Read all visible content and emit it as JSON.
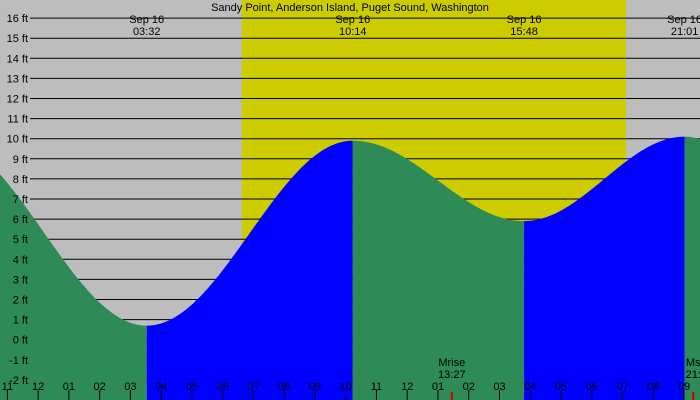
{
  "chart_data": {
    "type": "area",
    "title": "Sandy Point, Anderson Island, Puget Sound, Washington",
    "xlabel": "",
    "ylabel": "",
    "y_unit": "ft",
    "ylim": [
      -3.0,
      16.9
    ],
    "xlim_hours": [
      10.76,
      33.52
    ],
    "y_ticks": [
      {
        "value": 16,
        "label": "16 ft"
      },
      {
        "value": 15,
        "label": "15 ft"
      },
      {
        "value": 14,
        "label": "14 ft"
      },
      {
        "value": 13,
        "label": "13 ft"
      },
      {
        "value": 12,
        "label": "12 ft"
      },
      {
        "value": 11,
        "label": "11 ft"
      },
      {
        "value": 10,
        "label": "10 ft"
      },
      {
        "value": 9,
        "label": "9 ft"
      },
      {
        "value": 8,
        "label": "8 ft"
      },
      {
        "value": 7,
        "label": "7 ft"
      },
      {
        "value": 6,
        "label": "6 ft"
      },
      {
        "value": 5,
        "label": "5 ft"
      },
      {
        "value": 4,
        "label": "4 ft"
      },
      {
        "value": 3,
        "label": "3 ft"
      },
      {
        "value": 2,
        "label": "2 ft"
      },
      {
        "value": 1,
        "label": "1 ft"
      },
      {
        "value": 0,
        "label": "0 ft"
      },
      {
        "value": -1,
        "label": "-1 ft"
      },
      {
        "value": -2,
        "label": "-2 ft"
      }
    ],
    "x_ticks": [
      {
        "hour": 11,
        "label": "11"
      },
      {
        "hour": 12,
        "label": "12"
      },
      {
        "hour": 13,
        "label": "01"
      },
      {
        "hour": 14,
        "label": "02"
      },
      {
        "hour": 15,
        "label": "03"
      },
      {
        "hour": 16,
        "label": "04"
      },
      {
        "hour": 17,
        "label": "05"
      },
      {
        "hour": 18,
        "label": "06"
      },
      {
        "hour": 19,
        "label": "07"
      },
      {
        "hour": 20,
        "label": "08"
      },
      {
        "hour": 21,
        "label": "09"
      },
      {
        "hour": 22,
        "label": "10"
      },
      {
        "hour": 23,
        "label": "11"
      },
      {
        "hour": 24,
        "label": "12"
      },
      {
        "hour": 25,
        "label": "01"
      },
      {
        "hour": 26,
        "label": "02"
      },
      {
        "hour": 27,
        "label": "03"
      },
      {
        "hour": 28,
        "label": "04"
      },
      {
        "hour": 29,
        "label": "05"
      },
      {
        "hour": 30,
        "label": "06"
      },
      {
        "hour": 31,
        "label": "07"
      },
      {
        "hour": 32,
        "label": "08"
      },
      {
        "hour": 33,
        "label": "09"
      }
    ],
    "extremes": [
      {
        "date": "Sep 16",
        "time": "03:32",
        "hour": 15.53,
        "height_ft": 0.7,
        "kind": "low"
      },
      {
        "date": "Sep 16",
        "time": "10:14",
        "hour": 22.23,
        "height_ft": 9.9,
        "kind": "high"
      },
      {
        "date": "Sep 16",
        "time": "15:48",
        "hour": 27.8,
        "height_ft": 5.9,
        "kind": "low"
      },
      {
        "date": "Sep 16",
        "time": "21:01",
        "hour": 33.02,
        "height_ft": 10.1,
        "kind": "high"
      }
    ],
    "daylight": {
      "start_hour": 18.62,
      "end_hour": 31.12
    },
    "series": [
      {
        "kind": "falling",
        "from_hour": 10.76,
        "to_hour": 15.53,
        "color": "#2e8b57"
      },
      {
        "kind": "rising",
        "from_hour": 15.53,
        "to_hour": 22.23,
        "color": "#0000ff"
      },
      {
        "kind": "falling",
        "from_hour": 22.23,
        "to_hour": 27.8,
        "color": "#2e8b57"
      },
      {
        "kind": "rising",
        "from_hour": 27.8,
        "to_hour": 33.02,
        "color": "#0000ff"
      },
      {
        "kind": "falling",
        "from_hour": 33.02,
        "to_hour": 33.52,
        "color": "#2e8b57"
      }
    ],
    "moon_events": [
      {
        "label": "Mrise",
        "time": "13:27",
        "hour": 25.45
      },
      {
        "label": "Ms",
        "time": "21:",
        "hour": 33.3
      }
    ],
    "colors": {
      "night": "#bdbdbd",
      "day": "#cccc00",
      "rising": "#0000ff",
      "falling": "#2e8b57",
      "grid": "#000000",
      "moon_marker": "#cc0000"
    },
    "grid": true,
    "legend": "none"
  }
}
